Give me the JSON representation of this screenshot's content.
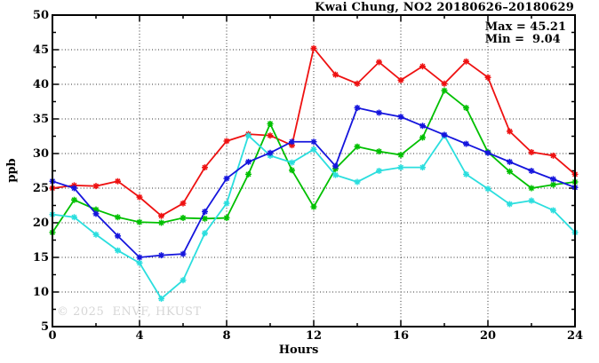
{
  "chart": {
    "title": "Kwai Chung, NO2 20180626–20180629",
    "stats": {
      "max_label": "Max = 45.21",
      "min_label": "Min =  9.04"
    },
    "ylabel": "ppb",
    "xlabel": "Hours",
    "watermark": "© 2025  ENVF, HKUST"
  },
  "chart_data": {
    "type": "line",
    "title": "Kwai Chung, NO2 20180626–20180629",
    "xlabel": "Hours",
    "ylabel": "ppb",
    "xlim": [
      0,
      24
    ],
    "ylim": [
      5,
      50
    ],
    "x_major_ticks": [
      0,
      4,
      8,
      12,
      16,
      20,
      24
    ],
    "x_minor_step": 2,
    "y_major_ticks": [
      5,
      10,
      15,
      20,
      25,
      30,
      35,
      40,
      45,
      50
    ],
    "y_minor_step": 2.5,
    "grid": true,
    "legend": "none",
    "marker": "asterisk",
    "stat_max": 45.21,
    "stat_min": 9.04,
    "x": [
      0,
      1,
      2,
      3,
      4,
      5,
      6,
      7,
      8,
      9,
      10,
      11,
      12,
      13,
      14,
      15,
      16,
      17,
      18,
      19,
      20,
      21,
      22,
      23,
      24
    ],
    "series": [
      {
        "name": "red-series",
        "color": "#ee1111",
        "values": [
          25.0,
          25.4,
          25.3,
          26.0,
          23.7,
          21.0,
          22.8,
          28.0,
          31.8,
          32.8,
          32.6,
          31.2,
          45.21,
          41.4,
          40.1,
          43.2,
          40.6,
          42.6,
          40.1,
          43.3,
          41.0,
          33.2,
          30.2,
          29.7,
          27.0
        ]
      },
      {
        "name": "green-series",
        "color": "#00c000",
        "values": [
          18.6,
          23.3,
          21.9,
          20.8,
          20.1,
          20.0,
          20.7,
          20.6,
          20.7,
          27.0,
          34.3,
          27.6,
          22.3,
          27.8,
          31.0,
          30.3,
          29.8,
          32.3,
          39.1,
          36.6,
          30.2,
          27.4,
          25.0,
          25.5,
          25.9
        ]
      },
      {
        "name": "cyan-series",
        "color": "#2bdede",
        "values": [
          21.2,
          20.8,
          18.3,
          16.0,
          14.2,
          9.04,
          11.7,
          18.5,
          22.8,
          32.6,
          29.7,
          28.7,
          30.6,
          26.9,
          25.9,
          27.5,
          28.0,
          28.0,
          32.6,
          27.0,
          24.9,
          22.7,
          23.2,
          21.8,
          18.6
        ]
      },
      {
        "name": "blue-series",
        "color": "#1515dd",
        "values": [
          26.0,
          25.0,
          21.3,
          18.1,
          15.0,
          15.3,
          15.5,
          21.6,
          26.4,
          28.8,
          30.1,
          31.7,
          31.7,
          28.2,
          36.6,
          35.9,
          35.3,
          34.0,
          32.7,
          31.4,
          30.1,
          28.8,
          27.5,
          26.3,
          25.1
        ]
      }
    ]
  }
}
